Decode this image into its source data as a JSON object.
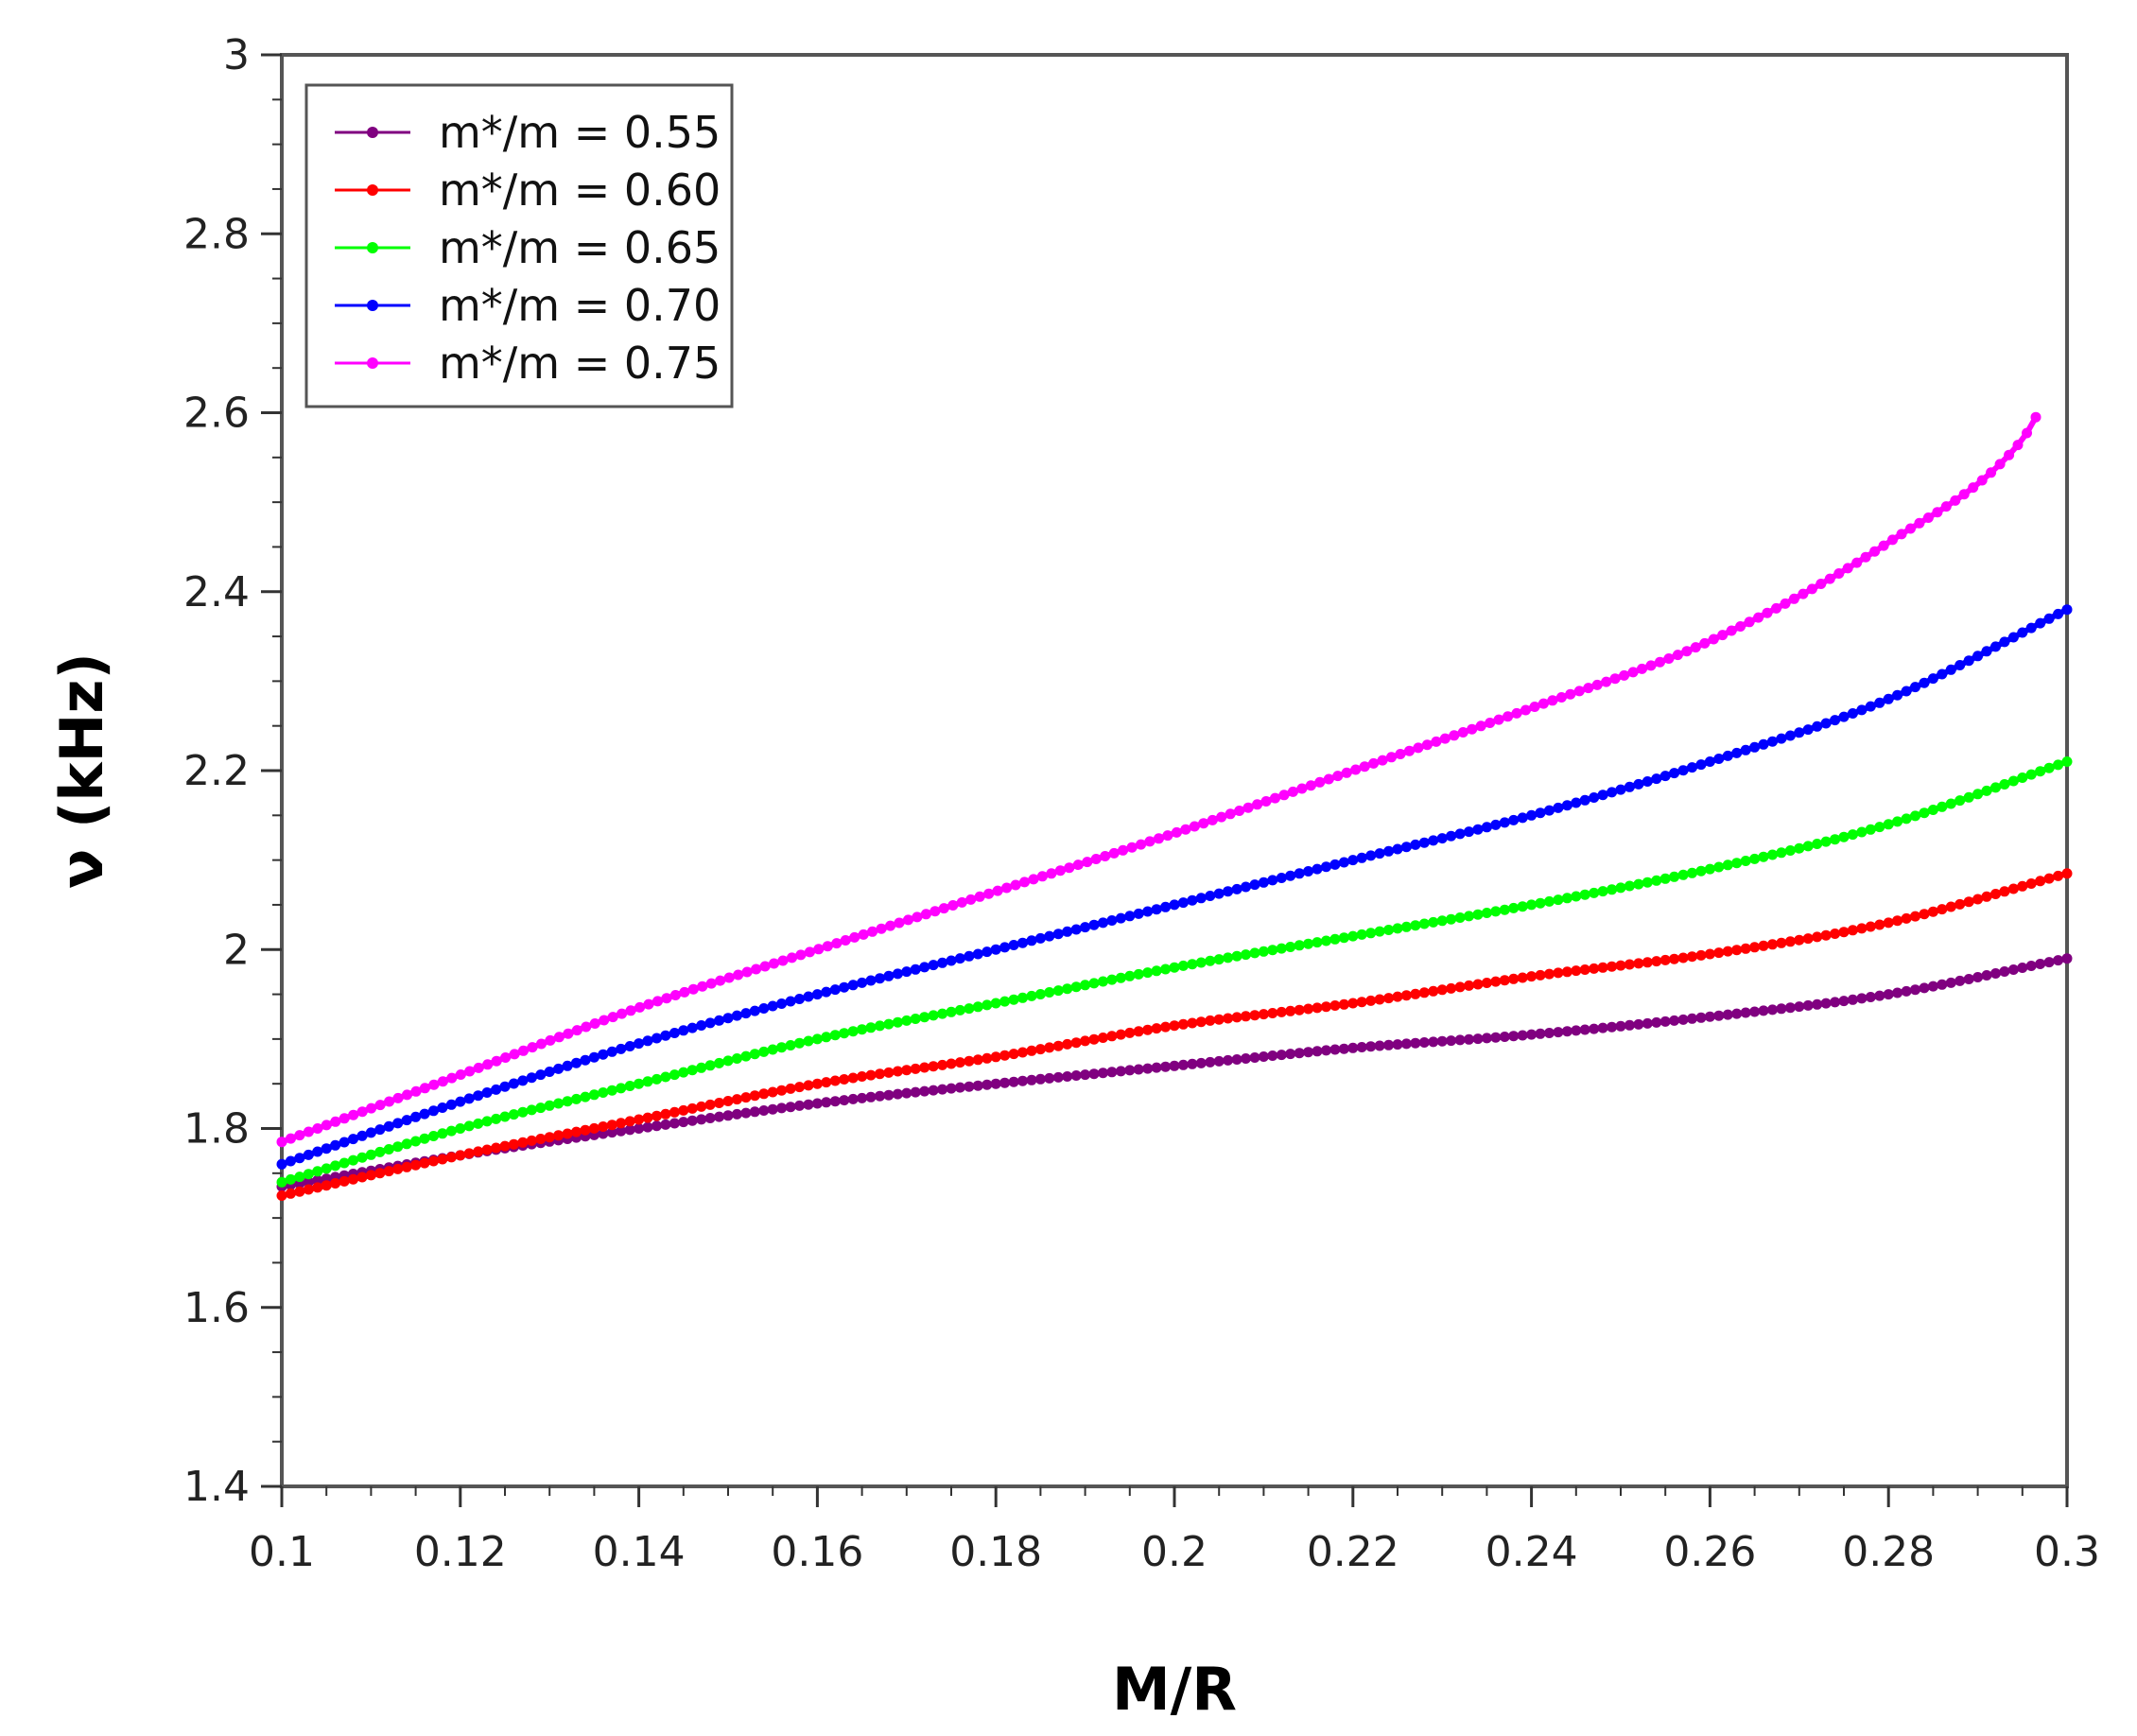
{
  "chart_data": {
    "type": "scatter",
    "title": "",
    "xlabel": "M/R",
    "ylabel": "ν (kHz)",
    "xlim": [
      0.1,
      0.3
    ],
    "ylim": [
      1.4,
      3.0
    ],
    "x_ticks": [
      0.1,
      0.12,
      0.14,
      0.16,
      0.18,
      0.2,
      0.22,
      0.24,
      0.26,
      0.28,
      0.3
    ],
    "x_tick_labels": [
      "0.1",
      "0.12",
      "0.14",
      "0.16",
      "0.18",
      "0.2",
      "0.22",
      "0.24",
      "0.26",
      "0.28",
      "0.3"
    ],
    "y_ticks": [
      1.4,
      1.6,
      1.8,
      2.0,
      2.2,
      2.4,
      2.6,
      2.8,
      3.0
    ],
    "y_tick_labels": [
      "1.4",
      "1.6",
      "1.8",
      "2",
      "2.2",
      "2.4",
      "2.6",
      "2.8",
      "3"
    ],
    "grid": false,
    "legend_position": "top-left",
    "series": [
      {
        "name": "m*/m = 0.55",
        "color": "#800080",
        "x": [
          0.1,
          0.12,
          0.14,
          0.16,
          0.18,
          0.2,
          0.22,
          0.24,
          0.26,
          0.28,
          0.3
        ],
        "y": [
          1.735,
          1.77,
          1.8,
          1.828,
          1.85,
          1.87,
          1.89,
          1.905,
          1.925,
          1.95,
          1.99
        ]
      },
      {
        "name": "m*/m = 0.60",
        "color": "#ff0000",
        "x": [
          0.1,
          0.12,
          0.14,
          0.16,
          0.18,
          0.2,
          0.22,
          0.24,
          0.26,
          0.28,
          0.3
        ],
        "y": [
          1.725,
          1.77,
          1.81,
          1.85,
          1.88,
          1.915,
          1.94,
          1.97,
          1.995,
          2.03,
          2.085
        ]
      },
      {
        "name": "m*/m = 0.65",
        "color": "#00ff00",
        "x": [
          0.1,
          0.12,
          0.14,
          0.16,
          0.18,
          0.2,
          0.22,
          0.24,
          0.26,
          0.28,
          0.3
        ],
        "y": [
          1.74,
          1.8,
          1.85,
          1.9,
          1.94,
          1.98,
          2.015,
          2.05,
          2.09,
          2.14,
          2.21
        ]
      },
      {
        "name": "m*/m = 0.70",
        "color": "#0000ff",
        "x": [
          0.1,
          0.12,
          0.14,
          0.16,
          0.18,
          0.2,
          0.22,
          0.24,
          0.26,
          0.28,
          0.3
        ],
        "y": [
          1.76,
          1.83,
          1.895,
          1.95,
          2.0,
          2.05,
          2.1,
          2.15,
          2.21,
          2.28,
          2.38
        ]
      },
      {
        "name": "m*/m = 0.75",
        "color": "#ff00ff",
        "x": [
          0.1,
          0.12,
          0.14,
          0.16,
          0.18,
          0.2,
          0.22,
          0.24,
          0.26,
          0.28,
          0.295,
          0.2965
        ],
        "y": [
          1.785,
          1.86,
          1.935,
          2.0,
          2.065,
          2.13,
          2.2,
          2.27,
          2.345,
          2.455,
          2.57,
          2.595
        ]
      }
    ]
  }
}
